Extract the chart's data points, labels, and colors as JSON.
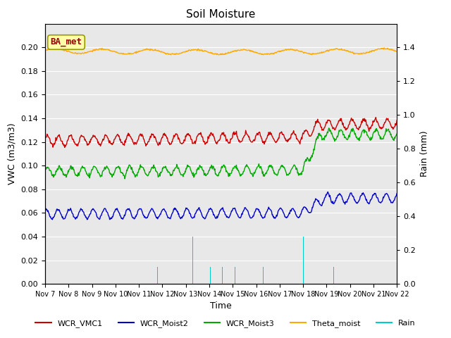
{
  "title": "Soil Moisture",
  "ylabel_left": "VWC (m3/m3)",
  "ylabel_right": "Rain (mm)",
  "xlabel": "Time",
  "background_color": "#e8e8e8",
  "ylim_left": [
    0.0,
    0.22
  ],
  "ylim_right": [
    0.0,
    1.54
  ],
  "yticks_left": [
    0.0,
    0.02,
    0.04,
    0.06,
    0.08,
    0.1,
    0.12,
    0.14,
    0.16,
    0.18,
    0.2
  ],
  "yticks_right": [
    0.0,
    0.2,
    0.4,
    0.6,
    0.8,
    1.0,
    1.2,
    1.4
  ],
  "n_points": 720,
  "colors": {
    "WCR_VMC1": "#cc0000",
    "WCR_Moist2": "#0000cc",
    "WCR_Moist3": "#00aa00",
    "Theta_moist": "#ffaa00",
    "Rain": "#00cccc"
  },
  "annotation_text": "BA_met",
  "annotation_color": "#990000",
  "annotation_bg": "#ffffaa",
  "annotation_edge": "#999900"
}
